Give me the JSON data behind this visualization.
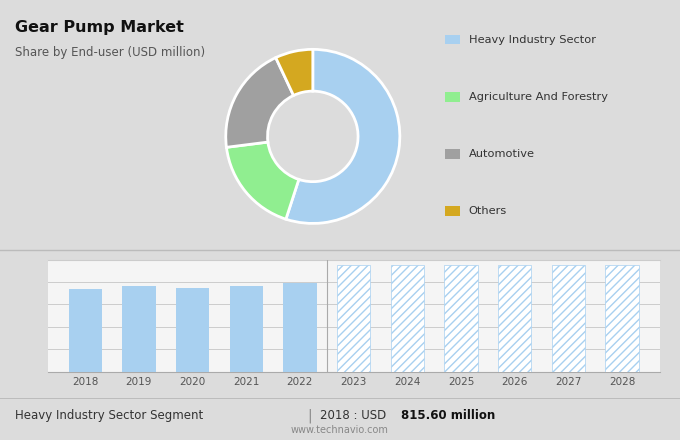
{
  "title": "Gear Pump Market",
  "subtitle": "Share by End-user (USD million)",
  "bg_top": "#dcdcdc",
  "bg_bottom": "#f5f5f5",
  "donut_values": [
    55,
    18,
    20,
    7
  ],
  "donut_colors": [
    "#a8d0f0",
    "#90ee90",
    "#a0a0a0",
    "#d4a820"
  ],
  "donut_labels": [
    "Heavy Industry Sector",
    "Agriculture And Forestry",
    "Automotive",
    "Others"
  ],
  "bar_years_historical": [
    2018,
    2019,
    2020,
    2021,
    2022
  ],
  "bar_values_historical": [
    815.6,
    840,
    820,
    845,
    870
  ],
  "bar_color_historical": "#a8d0f0",
  "bar_years_forecast": [
    2023,
    2024,
    2025,
    2026,
    2027,
    2028
  ],
  "bar_values_forecast": [
    1050,
    1050,
    1050,
    1050,
    1050,
    1050
  ],
  "bar_color_forecast": "#a8d0f0",
  "footer_left": "Heavy Industry Sector Segment",
  "footer_url": "www.technavio.com",
  "separator_year": 2022.5,
  "ylim_max": 1100,
  "grid_color": "#cccccc"
}
